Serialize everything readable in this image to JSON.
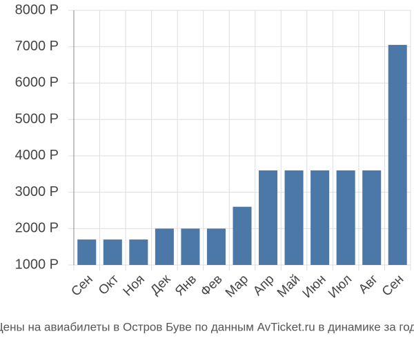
{
  "chart_data": {
    "type": "bar",
    "categories": [
      "Сен",
      "Окт",
      "Ноя",
      "Дек",
      "Янв",
      "Фев",
      "Мар",
      "Апр",
      "Май",
      "Июн",
      "Июл",
      "Авг",
      "Сен"
    ],
    "values": [
      1700,
      1700,
      1700,
      2000,
      2000,
      2000,
      2600,
      3600,
      3600,
      3600,
      3600,
      3600,
      7050
    ],
    "color": "#4c78a8",
    "ylim": [
      1000,
      8000
    ],
    "yticks": [
      {
        "value": 1000,
        "label": "1000 Р"
      },
      {
        "value": 2000,
        "label": "2000 Р"
      },
      {
        "value": 3000,
        "label": "3000 Р"
      },
      {
        "value": 4000,
        "label": "4000 Р"
      },
      {
        "value": 5000,
        "label": "5000 Р"
      },
      {
        "value": 6000,
        "label": "6000 Р"
      },
      {
        "value": 7000,
        "label": "7000 Р"
      },
      {
        "value": 8000,
        "label": "8000 Р"
      }
    ],
    "grid": true,
    "caption": "Цены на авиабилеты в Остров Буве по данным AvTicket.ru в динамике за год."
  }
}
